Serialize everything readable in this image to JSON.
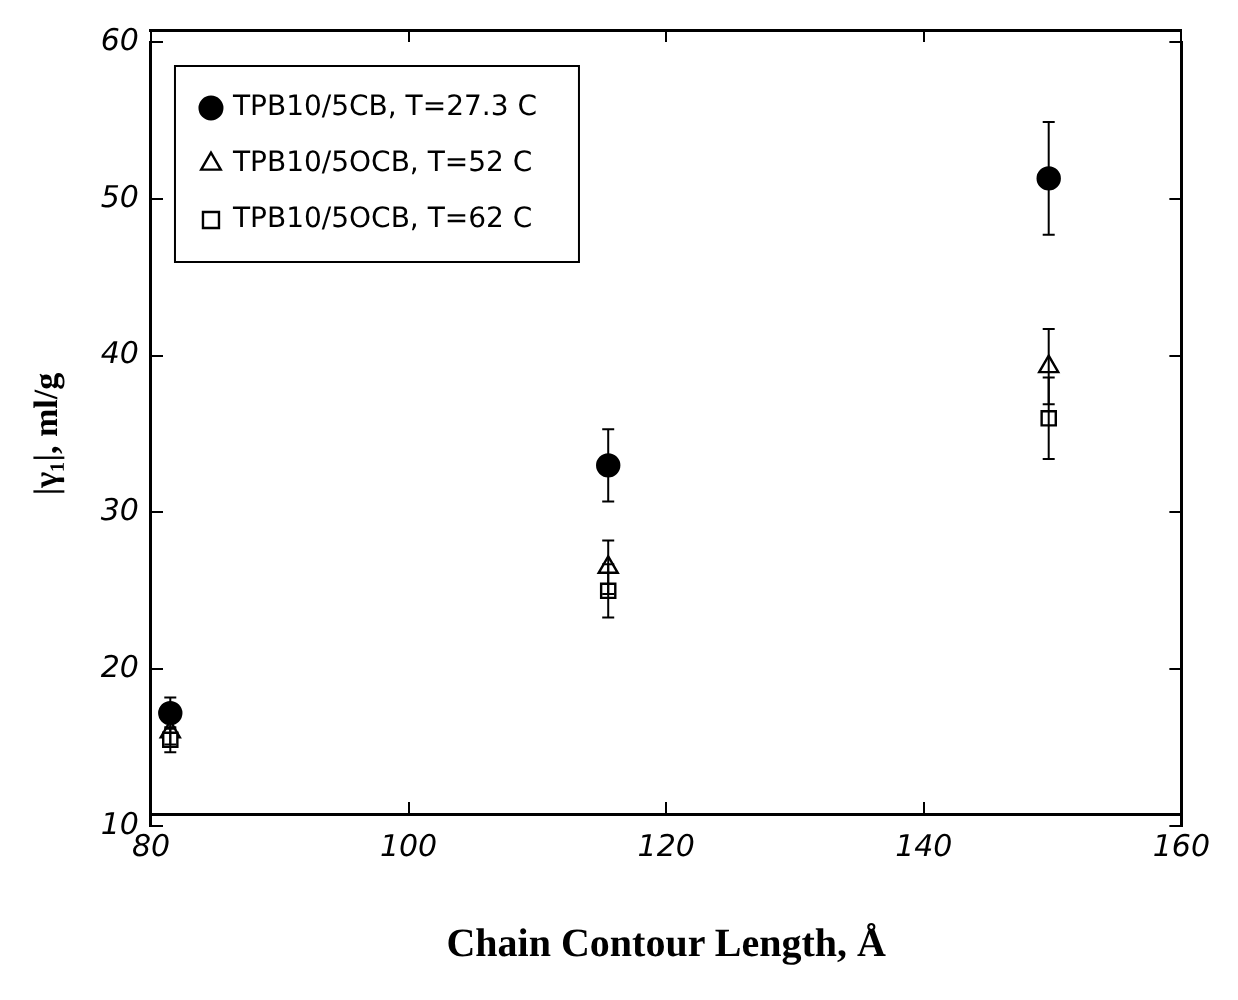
{
  "chart_data": {
    "type": "scatter",
    "xlabel": "Chain Contour Length, Å",
    "ylabel": "|γ₁|, ml/g",
    "x": [
      81.5,
      115.5,
      149.7
    ],
    "series": [
      {
        "name": "TPB10/5CB, T=27.3 C",
        "color": "#000000",
        "marker": "circle",
        "values": [
          17.2,
          33,
          51.3
        ],
        "errors": [
          1,
          2.3,
          3.6
        ]
      },
      {
        "name": "TPB10/5OCB, T=52 C",
        "color": "#000000",
        "marker": "triangle",
        "values": [
          16,
          26.5,
          39.3
        ],
        "errors": [
          0.8,
          1.7,
          2.4
        ]
      },
      {
        "name": "TPB10/5OCB, T=62 C",
        "color": "#000000",
        "marker": "square",
        "values": [
          15.5,
          25,
          36
        ],
        "errors": [
          0.8,
          1.7,
          2.6
        ]
      }
    ],
    "xlim": [
      80,
      160
    ],
    "xticks": [
      80,
      100,
      120,
      140,
      160
    ],
    "ylim": [
      10,
      60
    ],
    "yticks": [
      10,
      20,
      30,
      40,
      50,
      60
    ],
    "grid": false,
    "legend": "top left"
  }
}
